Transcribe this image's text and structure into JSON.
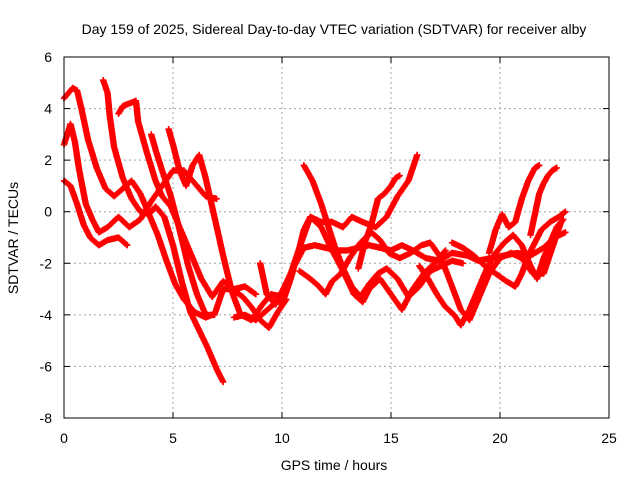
{
  "chart_data": {
    "type": "scatter",
    "title": "Day 159 of 2025, Sidereal Day-to-day VTEC variation (SDTVAR) for receiver alby",
    "xlabel": "GPS time / hours",
    "ylabel": "SDTVAR / TECUs",
    "xlim": [
      0,
      25
    ],
    "ylim": [
      -8,
      6
    ],
    "x_ticks": [
      "0",
      "5",
      "10",
      "15",
      "20",
      "25"
    ],
    "y_ticks": [
      "-8",
      "-6",
      "-4",
      "-2",
      "0",
      "2",
      "4",
      "6"
    ],
    "grid": true,
    "marker": "plus",
    "color": "#ff0000",
    "series": [
      {
        "points": [
          [
            0.0,
            1.2
          ],
          [
            0.3,
            1.0
          ],
          [
            0.6,
            0.3
          ],
          [
            0.9,
            -0.5
          ],
          [
            1.2,
            -1.0
          ],
          [
            1.6,
            -1.3
          ],
          [
            2.0,
            -1.1
          ],
          [
            2.5,
            -1.0
          ],
          [
            2.9,
            -1.3
          ]
        ]
      },
      {
        "points": [
          [
            0.0,
            2.6
          ],
          [
            0.3,
            3.4
          ],
          [
            0.5,
            2.7
          ],
          [
            0.7,
            1.6
          ],
          [
            1.0,
            0.3
          ],
          [
            1.3,
            -0.3
          ],
          [
            1.6,
            -0.8
          ],
          [
            2.0,
            -0.6
          ],
          [
            2.5,
            -0.2
          ],
          [
            3.0,
            -0.6
          ],
          [
            3.5,
            -0.3
          ],
          [
            4.0,
            0.4
          ],
          [
            4.5,
            1.0
          ],
          [
            5.0,
            1.6
          ],
          [
            5.5,
            1.6
          ],
          [
            6.0,
            1.1
          ],
          [
            6.5,
            0.6
          ],
          [
            7.0,
            0.5
          ]
        ]
      },
      {
        "points": [
          [
            0.0,
            4.4
          ],
          [
            0.4,
            4.8
          ],
          [
            0.6,
            4.7
          ],
          [
            0.8,
            4.0
          ],
          [
            1.1,
            2.8
          ],
          [
            1.5,
            1.7
          ],
          [
            1.9,
            0.9
          ],
          [
            2.3,
            0.6
          ],
          [
            2.7,
            0.9
          ],
          [
            3.1,
            1.2
          ],
          [
            3.5,
            0.7
          ],
          [
            3.9,
            -0.1
          ],
          [
            4.3,
            -0.9
          ],
          [
            4.7,
            -1.9
          ],
          [
            5.1,
            -2.8
          ],
          [
            5.5,
            -3.4
          ],
          [
            6.0,
            -3.9
          ],
          [
            6.5,
            -4.1
          ],
          [
            6.8,
            -4.0
          ]
        ]
      },
      {
        "points": [
          [
            1.8,
            5.1
          ],
          [
            2.0,
            4.6
          ],
          [
            2.1,
            3.7
          ],
          [
            2.3,
            2.5
          ],
          [
            2.7,
            1.3
          ],
          [
            3.1,
            0.5
          ],
          [
            3.5,
            0.0
          ],
          [
            3.9,
            -0.1
          ],
          [
            4.2,
            0.2
          ],
          [
            4.6,
            -0.2
          ],
          [
            5.0,
            -1.3
          ],
          [
            5.4,
            -2.7
          ],
          [
            5.8,
            -3.9
          ],
          [
            6.2,
            -4.6
          ],
          [
            6.6,
            -5.3
          ],
          [
            7.0,
            -6.1
          ],
          [
            7.3,
            -6.6
          ]
        ]
      },
      {
        "points": [
          [
            2.5,
            3.8
          ],
          [
            2.7,
            4.1
          ],
          [
            3.0,
            4.2
          ],
          [
            3.3,
            4.3
          ],
          [
            3.4,
            3.5
          ],
          [
            3.8,
            2.3
          ],
          [
            4.2,
            1.2
          ],
          [
            4.5,
            0.6
          ],
          [
            4.9,
            0.2
          ],
          [
            5.3,
            -0.6
          ],
          [
            5.8,
            -1.6
          ],
          [
            6.3,
            -2.6
          ],
          [
            6.8,
            -3.3
          ],
          [
            7.3,
            -2.7
          ],
          [
            7.8,
            -3.0
          ],
          [
            8.3,
            -2.9
          ],
          [
            8.8,
            -3.2
          ]
        ]
      },
      {
        "points": [
          [
            4.0,
            3.0
          ],
          [
            4.2,
            2.4
          ],
          [
            4.5,
            1.6
          ],
          [
            4.9,
            0.6
          ],
          [
            5.3,
            -0.7
          ],
          [
            5.7,
            -2.1
          ],
          [
            6.1,
            -3.2
          ],
          [
            6.5,
            -4.0
          ],
          [
            6.9,
            -4.0
          ],
          [
            7.3,
            -3.0
          ],
          [
            7.7,
            -3.0
          ],
          [
            8.2,
            -3.3
          ],
          [
            8.6,
            -3.7
          ],
          [
            9.0,
            -4.2
          ],
          [
            9.4,
            -4.5
          ],
          [
            9.8,
            -3.9
          ],
          [
            10.2,
            -3.4
          ]
        ]
      },
      {
        "points": [
          [
            4.8,
            3.2
          ],
          [
            5.0,
            2.6
          ],
          [
            5.3,
            1.6
          ],
          [
            5.6,
            1.0
          ],
          [
            5.9,
            1.8
          ],
          [
            6.2,
            2.2
          ],
          [
            6.5,
            1.3
          ],
          [
            6.9,
            -0.2
          ],
          [
            7.3,
            -1.7
          ],
          [
            7.7,
            -3.1
          ],
          [
            8.1,
            -4.0
          ],
          [
            8.6,
            -4.2
          ],
          [
            9.1,
            -3.6
          ],
          [
            9.5,
            -3.2
          ],
          [
            10.0,
            -3.3
          ]
        ]
      },
      {
        "points": [
          [
            7.8,
            -4.1
          ],
          [
            8.3,
            -4.0
          ],
          [
            8.8,
            -4.2
          ],
          [
            9.2,
            -3.9
          ],
          [
            9.6,
            -3.6
          ],
          [
            10.0,
            -3.1
          ],
          [
            10.4,
            -2.4
          ],
          [
            10.8,
            -1.4
          ],
          [
            11.3,
            -0.2
          ],
          [
            11.8,
            -0.4
          ],
          [
            12.3,
            -0.4
          ],
          [
            12.8,
            -0.6
          ],
          [
            13.2,
            -0.2
          ],
          [
            13.7,
            -0.4
          ],
          [
            14.3,
            -0.6
          ],
          [
            14.8,
            -0.2
          ],
          [
            15.3,
            0.6
          ],
          [
            15.8,
            1.2
          ],
          [
            16.2,
            2.2
          ]
        ]
      },
      {
        "points": [
          [
            9.0,
            -2.0
          ],
          [
            9.3,
            -3.2
          ],
          [
            9.7,
            -3.6
          ],
          [
            10.1,
            -3.0
          ],
          [
            10.5,
            -2.2
          ],
          [
            11.0,
            -1.4
          ],
          [
            11.5,
            -1.3
          ],
          [
            12.0,
            -1.4
          ],
          [
            12.5,
            -1.5
          ],
          [
            13.0,
            -1.5
          ],
          [
            13.5,
            -1.4
          ],
          [
            14.0,
            -1.3
          ],
          [
            14.5,
            -1.4
          ],
          [
            15.0,
            -1.5
          ],
          [
            15.5,
            -1.3
          ],
          [
            16.0,
            -1.5
          ],
          [
            16.6,
            -1.8
          ],
          [
            17.2,
            -1.9
          ],
          [
            17.8,
            -1.6
          ],
          [
            18.5,
            -1.7
          ],
          [
            19.0,
            -1.9
          ],
          [
            19.6,
            -1.8
          ],
          [
            20.2,
            -1.7
          ],
          [
            20.8,
            -1.6
          ],
          [
            21.4,
            -1.7
          ],
          [
            22.0,
            -1.4
          ],
          [
            22.5,
            -1.0
          ],
          [
            23.0,
            -0.8
          ]
        ]
      },
      {
        "points": [
          [
            10.0,
            -3.6
          ],
          [
            10.4,
            -2.6
          ],
          [
            10.8,
            -1.4
          ],
          [
            11.0,
            -0.7
          ],
          [
            11.3,
            -0.2
          ],
          [
            11.8,
            -0.6
          ],
          [
            12.3,
            -1.5
          ],
          [
            12.8,
            -2.3
          ],
          [
            13.3,
            -3.2
          ],
          [
            13.7,
            -3.5
          ],
          [
            14.0,
            -3.0
          ],
          [
            14.5,
            -2.6
          ],
          [
            15.0,
            -3.2
          ],
          [
            15.5,
            -3.8
          ],
          [
            16.0,
            -3.0
          ],
          [
            16.5,
            -2.4
          ],
          [
            17.0,
            -2.0
          ],
          [
            17.5,
            -1.5
          ]
        ]
      },
      {
        "points": [
          [
            11.0,
            1.8
          ],
          [
            11.4,
            1.2
          ],
          [
            11.8,
            0.3
          ],
          [
            12.1,
            -0.5
          ],
          [
            12.4,
            -1.3
          ],
          [
            12.8,
            -2.2
          ],
          [
            13.2,
            -2.9
          ],
          [
            13.6,
            -3.3
          ],
          [
            14.0,
            -2.8
          ],
          [
            14.4,
            -2.4
          ],
          [
            14.8,
            -2.2
          ],
          [
            15.3,
            -2.6
          ],
          [
            15.8,
            -3.3
          ],
          [
            16.3,
            -2.9
          ],
          [
            16.8,
            -2.3
          ],
          [
            17.3,
            -2.1
          ],
          [
            17.8,
            -1.9
          ],
          [
            18.3,
            -2.0
          ]
        ]
      },
      {
        "points": [
          [
            10.8,
            -2.3
          ],
          [
            11.3,
            -2.6
          ],
          [
            11.7,
            -2.9
          ],
          [
            12.0,
            -3.2
          ],
          [
            12.3,
            -2.7
          ],
          [
            12.7,
            -2.4
          ],
          [
            13.1,
            -1.8
          ],
          [
            13.6,
            -1.2
          ],
          [
            14.1,
            -0.8
          ],
          [
            14.5,
            -1.1
          ],
          [
            14.9,
            -1.6
          ],
          [
            15.4,
            -1.8
          ],
          [
            15.9,
            -1.6
          ],
          [
            16.4,
            -1.3
          ],
          [
            16.8,
            -1.2
          ],
          [
            17.3,
            -1.8
          ],
          [
            17.8,
            -2.9
          ],
          [
            18.2,
            -3.8
          ],
          [
            18.6,
            -4.2
          ],
          [
            19.0,
            -3.4
          ],
          [
            19.5,
            -2.4
          ],
          [
            20.0,
            -1.8
          ],
          [
            20.5,
            -1.6
          ],
          [
            21.0,
            -1.8
          ],
          [
            21.5,
            -2.4
          ],
          [
            22.0,
            -2.4
          ],
          [
            22.4,
            -1.4
          ],
          [
            22.8,
            -0.4
          ]
        ]
      },
      {
        "points": [
          [
            13.5,
            -2.2
          ],
          [
            13.8,
            -1.2
          ],
          [
            14.1,
            -0.5
          ],
          [
            14.4,
            0.5
          ],
          [
            14.7,
            0.7
          ],
          [
            15.0,
            1.0
          ],
          [
            15.2,
            1.3
          ],
          [
            15.4,
            1.4
          ]
        ]
      },
      {
        "points": [
          [
            16.3,
            -2.1
          ],
          [
            16.7,
            -2.6
          ],
          [
            17.1,
            -3.2
          ],
          [
            17.5,
            -3.7
          ],
          [
            17.9,
            -4.0
          ],
          [
            18.2,
            -4.4
          ],
          [
            18.6,
            -3.8
          ],
          [
            19.0,
            -3.0
          ],
          [
            19.4,
            -2.2
          ],
          [
            19.8,
            -1.6
          ],
          [
            20.2,
            -1.2
          ],
          [
            20.6,
            -0.9
          ],
          [
            21.0,
            -1.3
          ],
          [
            21.4,
            -2.1
          ],
          [
            21.7,
            -2.6
          ],
          [
            22.0,
            -1.8
          ],
          [
            22.3,
            -1.2
          ],
          [
            22.6,
            -0.6
          ],
          [
            22.9,
            -0.3
          ]
        ]
      },
      {
        "points": [
          [
            17.8,
            -1.2
          ],
          [
            18.3,
            -1.4
          ],
          [
            18.8,
            -1.7
          ],
          [
            19.3,
            -2.1
          ],
          [
            19.8,
            -2.4
          ],
          [
            20.3,
            -2.7
          ],
          [
            20.7,
            -2.9
          ],
          [
            21.0,
            -2.4
          ],
          [
            21.3,
            -1.7
          ],
          [
            21.6,
            -1.2
          ],
          [
            21.9,
            -0.7
          ],
          [
            22.3,
            -0.4
          ],
          [
            22.7,
            -0.2
          ],
          [
            23.0,
            0.0
          ]
        ]
      },
      {
        "points": [
          [
            19.5,
            -1.6
          ],
          [
            19.8,
            -0.7
          ],
          [
            20.1,
            -0.1
          ],
          [
            20.4,
            -0.6
          ],
          [
            20.7,
            -0.4
          ],
          [
            21.0,
            0.5
          ],
          [
            21.3,
            1.2
          ],
          [
            21.6,
            1.7
          ],
          [
            21.8,
            1.8
          ]
        ]
      },
      {
        "points": [
          [
            21.4,
            -0.9
          ],
          [
            21.6,
            -0.1
          ],
          [
            21.8,
            0.7
          ],
          [
            22.0,
            1.1
          ],
          [
            22.2,
            1.4
          ],
          [
            22.4,
            1.6
          ],
          [
            22.6,
            1.7
          ]
        ]
      }
    ]
  }
}
